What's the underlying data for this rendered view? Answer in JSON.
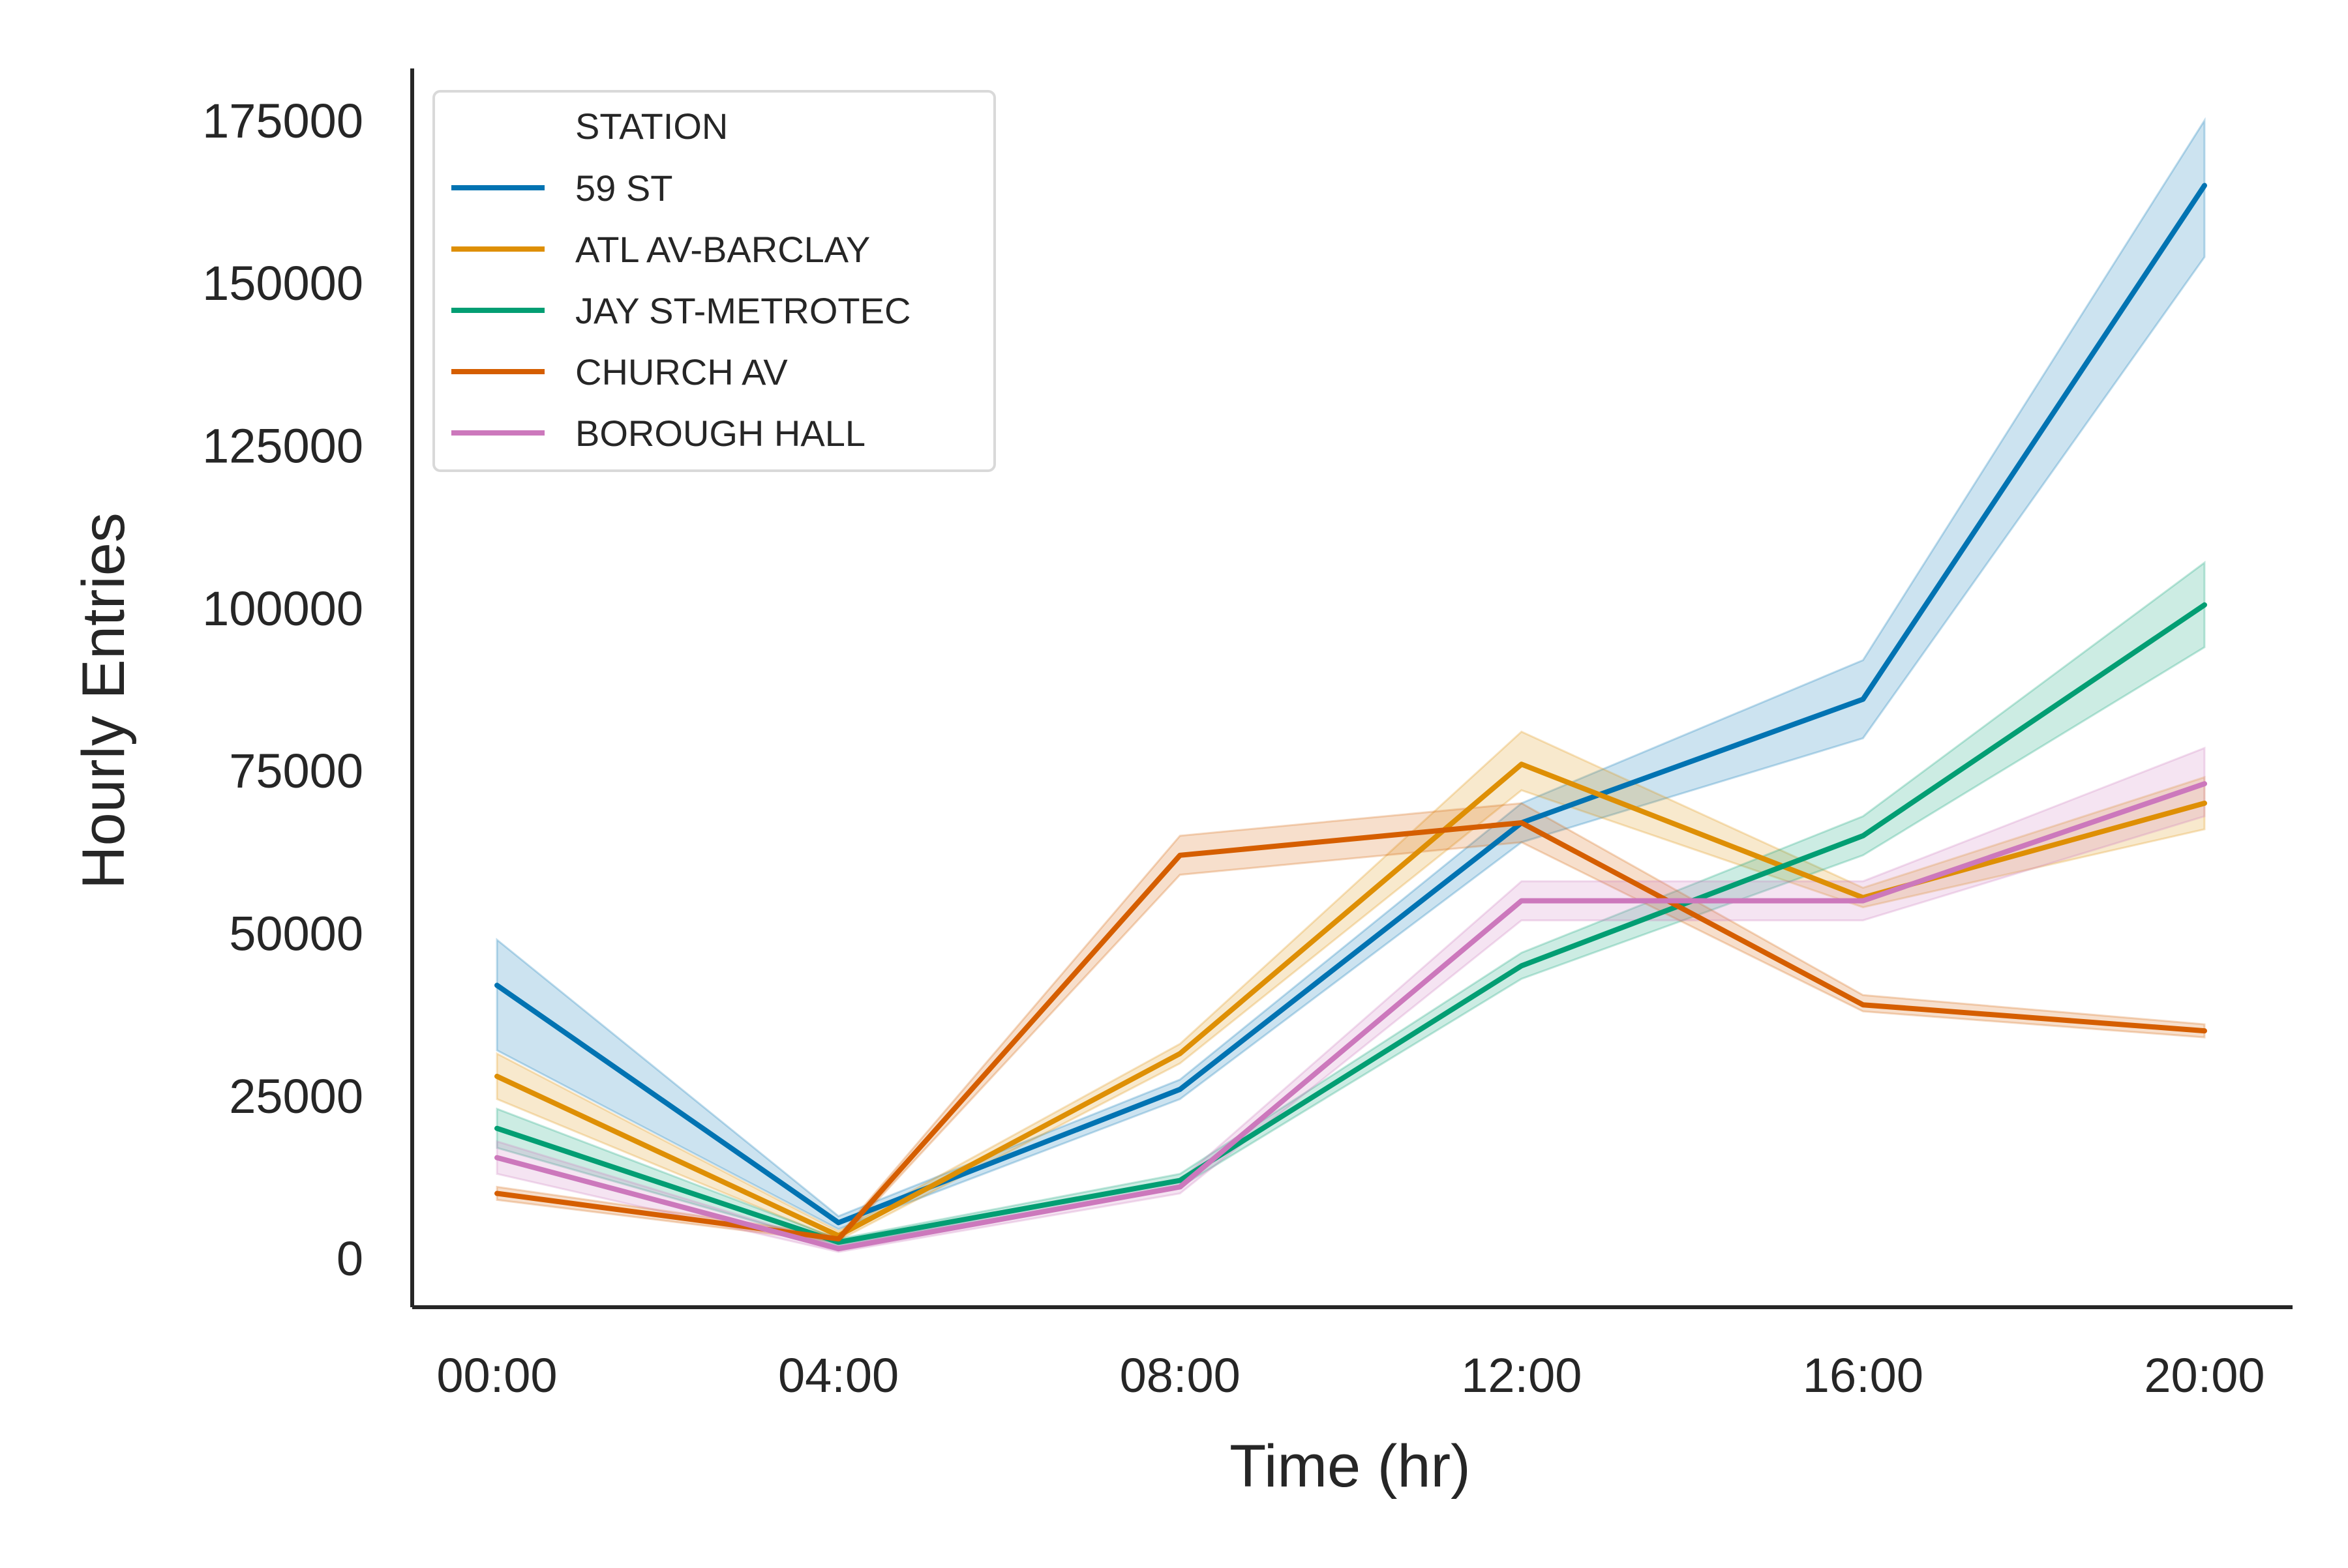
{
  "chart_data": {
    "type": "line",
    "title": "",
    "xlabel": "Time (hr)",
    "ylabel": "Hourly Entries",
    "categories": [
      "00:00",
      "04:00",
      "08:00",
      "12:00",
      "16:00",
      "20:00"
    ],
    "yticks": [
      "0",
      "25000",
      "50000",
      "75000",
      "100000",
      "125000",
      "150000",
      "175000"
    ],
    "ylim": [
      -7500,
      183000
    ],
    "grid": false,
    "legend": {
      "title": "STATION",
      "position": "top-left"
    },
    "series": [
      {
        "name": "59 ST",
        "color": "#0173b2",
        "values": [
          42000,
          5500,
          26000,
          67000,
          86000,
          165000
        ],
        "lower": [
          32000,
          4500,
          24500,
          64000,
          80000,
          154000
        ],
        "upper": [
          49000,
          6500,
          27500,
          70000,
          92000,
          175000
        ]
      },
      {
        "name": "ATL AV-BARCLAY",
        "color": "#de8f05",
        "values": [
          28000,
          3500,
          31500,
          76000,
          55500,
          70000
        ],
        "lower": [
          24500,
          2800,
          30000,
          72000,
          54000,
          66000
        ],
        "upper": [
          31500,
          4200,
          33000,
          81000,
          57000,
          74000
        ]
      },
      {
        "name": "JAY ST-METROTEC",
        "color": "#029e73",
        "values": [
          20000,
          2500,
          12000,
          45000,
          65000,
          100500
        ],
        "lower": [
          17000,
          2000,
          11000,
          43000,
          62000,
          94000
        ],
        "upper": [
          23000,
          3000,
          13000,
          47000,
          68000,
          107000
        ]
      },
      {
        "name": "CHURCH AV",
        "color": "#d55e00",
        "values": [
          10000,
          3000,
          62000,
          67000,
          39000,
          35000
        ],
        "lower": [
          9000,
          2500,
          59000,
          64000,
          38000,
          34000
        ],
        "upper": [
          11000,
          3500,
          65000,
          70000,
          40500,
          36000
        ]
      },
      {
        "name": "BOROUGH HALL",
        "color": "#cc78bc",
        "values": [
          15500,
          1500,
          11000,
          55000,
          55000,
          73000
        ],
        "lower": [
          13000,
          1000,
          10000,
          52000,
          52000,
          68000
        ],
        "upper": [
          18000,
          2000,
          12000,
          58000,
          58000,
          78500
        ]
      }
    ]
  }
}
